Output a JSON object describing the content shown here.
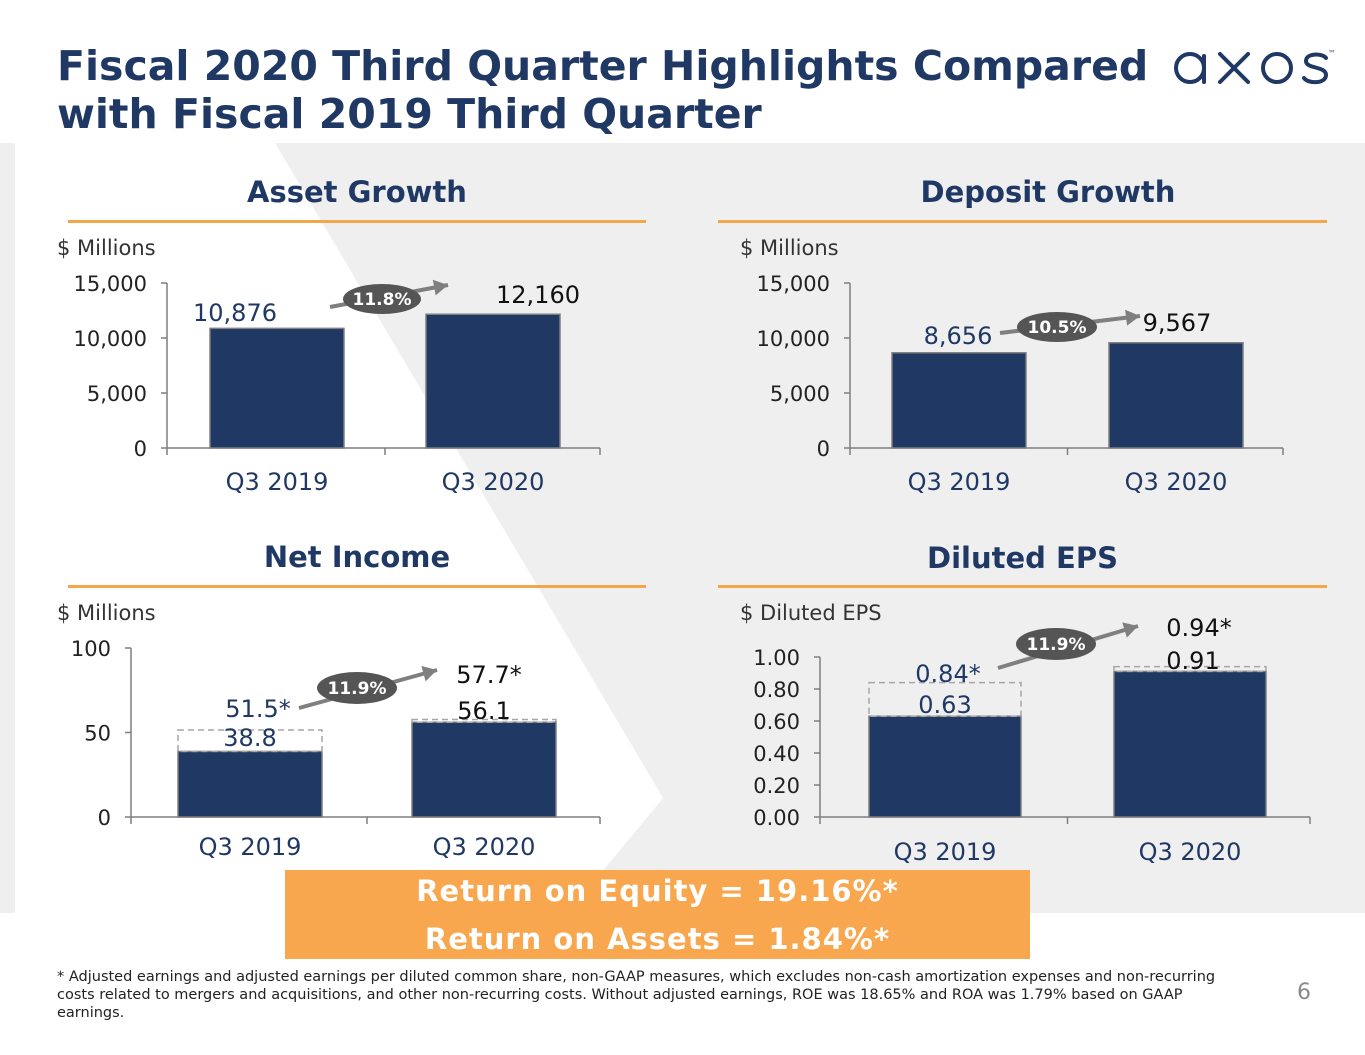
{
  "header": {
    "title_line1": "Fiscal 2020 Third Quarter Highlights Compared",
    "title_line2": "with Fiscal 2019 Third Quarter",
    "logo_text": "axos",
    "logo_tm": "™"
  },
  "colors": {
    "navy": "#1f3864",
    "orange": "#f9a74e",
    "rule": "#f4a74a",
    "badge": "#555555",
    "band": "#efefef"
  },
  "panels": {
    "asset": {
      "title": "Asset Growth",
      "unit": "$ Millions"
    },
    "deposit": {
      "title": "Deposit Growth",
      "unit": "$ Millions"
    },
    "income": {
      "title": "Net Income",
      "unit": "$ Millions"
    },
    "eps": {
      "title": "Diluted EPS",
      "unit": "$ Diluted EPS"
    }
  },
  "chart_data": [
    {
      "type": "bar",
      "title": "Asset Growth",
      "ylabel": "$ Millions",
      "categories": [
        "Q3 2019",
        "Q3 2020"
      ],
      "values": [
        10876,
        12160
      ],
      "value_labels": [
        "10,876",
        "12,160"
      ],
      "yticks": [
        "0",
        "5,000",
        "10,000",
        "15,000"
      ],
      "ylim": [
        0,
        15000
      ],
      "growth_badge": "11.8%"
    },
    {
      "type": "bar",
      "title": "Deposit Growth",
      "ylabel": "$ Millions",
      "categories": [
        "Q3 2019",
        "Q3 2020"
      ],
      "values": [
        8656,
        9567
      ],
      "value_labels": [
        "8,656",
        "9,567"
      ],
      "yticks": [
        "0",
        "5,000",
        "10,000",
        "15,000"
      ],
      "ylim": [
        0,
        15000
      ],
      "growth_badge": "10.5%"
    },
    {
      "type": "bar",
      "title": "Net Income",
      "ylabel": "$ Millions",
      "categories": [
        "Q3 2019",
        "Q3 2020"
      ],
      "values": [
        38.8,
        56.1
      ],
      "value_labels": [
        "38.8",
        "56.1"
      ],
      "adjusted_values": [
        51.5,
        57.7
      ],
      "adjusted_labels": [
        "51.5*",
        "57.7*"
      ],
      "yticks": [
        "0",
        "50",
        "100"
      ],
      "ylim": [
        0,
        100
      ],
      "growth_badge": "11.9%"
    },
    {
      "type": "bar",
      "title": "Diluted EPS",
      "ylabel": "$ Diluted EPS",
      "categories": [
        "Q3 2019",
        "Q3 2020"
      ],
      "values": [
        0.63,
        0.91
      ],
      "value_labels": [
        "0.63",
        "0.91"
      ],
      "adjusted_values": [
        0.84,
        0.94
      ],
      "adjusted_labels": [
        "0.84*",
        "0.94*"
      ],
      "yticks": [
        "0.00",
        "0.20",
        "0.40",
        "0.60",
        "0.80",
        "1.00"
      ],
      "ylim": [
        0,
        1.0
      ],
      "growth_badge": "11.9%"
    }
  ],
  "returns": {
    "roe": "Return on Equity = 19.16%*",
    "roa": "Return on Assets = 1.84%*"
  },
  "footnote": "* Adjusted earnings and adjusted earnings per diluted common share, non-GAAP measures, which excludes non-cash amortization expenses and non-recurring costs related to mergers and acquisitions, and other non-recurring costs. Without adjusted earnings, ROE was 18.65% and ROA was 1.79% based on GAAP earnings.",
  "page_number": "6"
}
